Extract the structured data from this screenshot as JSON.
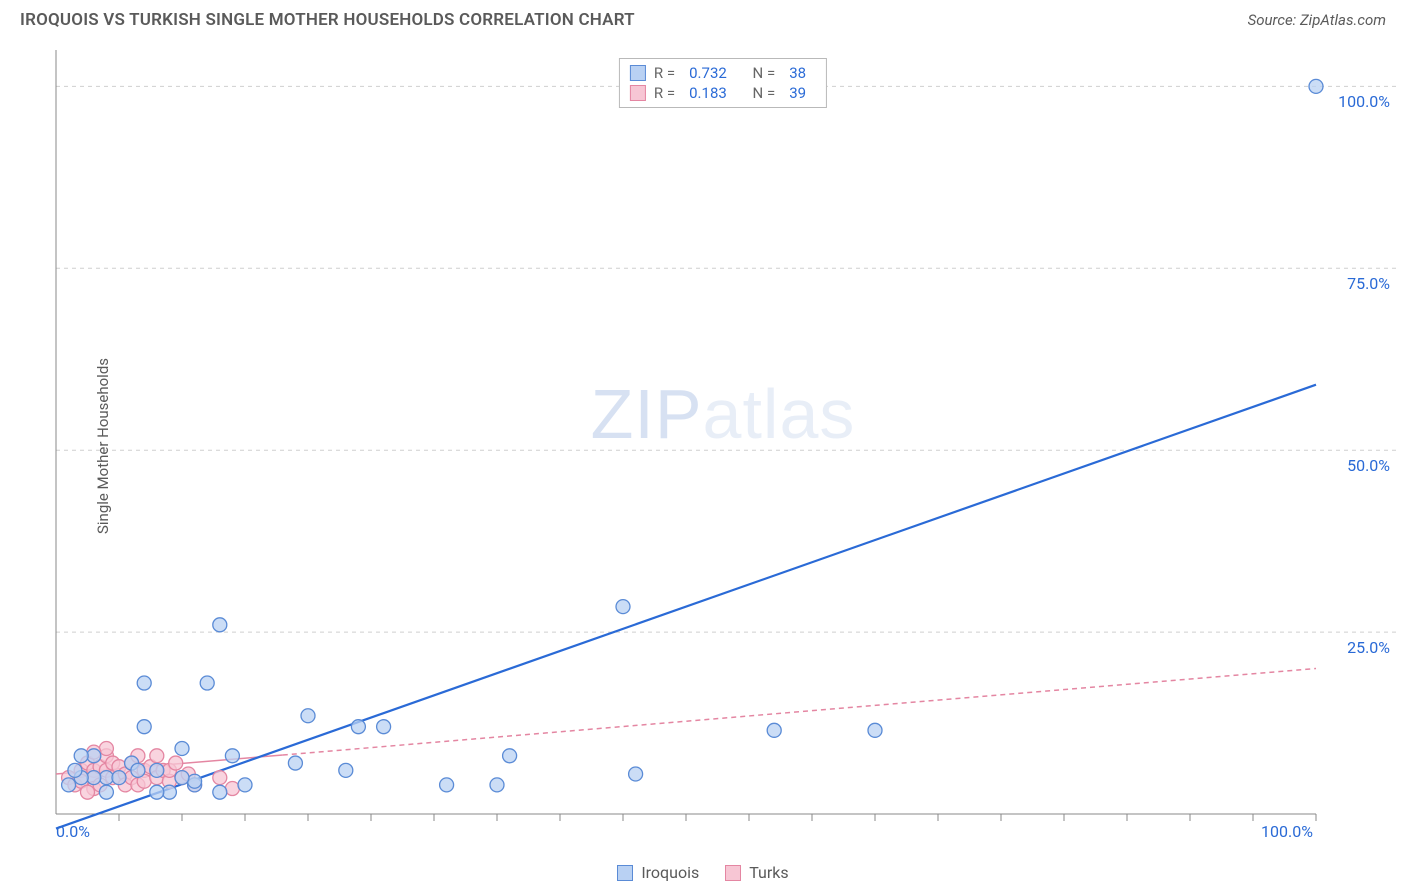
{
  "header": {
    "title": "IROQUOIS VS TURKISH SINGLE MOTHER HOUSEHOLDS CORRELATION CHART",
    "source_prefix": "Source: ",
    "source_name": "ZipAtlas.com"
  },
  "watermark": {
    "strong": "ZIP",
    "light": "atlas"
  },
  "chart": {
    "type": "scatter",
    "ylabel": "Single Mother Households",
    "xlim": [
      0,
      100
    ],
    "ylim": [
      0,
      105
    ],
    "x_axis_labels": [
      {
        "value": 0,
        "text": "0.0%"
      },
      {
        "value": 100,
        "text": "100.0%"
      }
    ],
    "y_axis_labels": [
      {
        "value": 25,
        "text": "25.0%"
      },
      {
        "value": 50,
        "text": "50.0%"
      },
      {
        "value": 75,
        "text": "75.0%"
      },
      {
        "value": 100,
        "text": "100.0%"
      }
    ],
    "x_ticks": [
      5,
      10,
      15,
      20,
      25,
      30,
      35,
      40,
      45,
      50,
      55,
      60,
      65,
      70,
      75,
      80,
      85,
      90,
      95,
      100
    ],
    "grid_y": [
      25,
      50,
      75,
      100
    ],
    "grid_color": "#cfcfcf",
    "background_color": "#ffffff",
    "marker_radius": 7,
    "marker_stroke_width": 1.3,
    "stats": [
      {
        "series": "iroquois",
        "R_label": "R =",
        "R": "0.732",
        "N_label": "N =",
        "N": "38"
      },
      {
        "series": "turks",
        "R_label": "R =",
        "R": "0.183",
        "N_label": "N =",
        "N": "39"
      }
    ],
    "legend": [
      {
        "key": "iroquois",
        "label": "Iroquois"
      },
      {
        "key": "turks",
        "label": "Turks"
      }
    ],
    "series": {
      "iroquois": {
        "fill": "#b9d1f3",
        "stroke": "#5a8bd6",
        "line_color": "#2a6ad6",
        "line_width": 2.2,
        "line_dash": "none",
        "trend": {
          "x1": 0,
          "y1": -2,
          "x2": 100,
          "y2": 59
        },
        "points": [
          [
            100,
            100
          ],
          [
            45,
            28.5
          ],
          [
            13,
            26
          ],
          [
            7,
            18
          ],
          [
            12,
            18
          ],
          [
            24,
            12
          ],
          [
            26,
            12
          ],
          [
            31,
            4
          ],
          [
            35,
            4
          ],
          [
            36,
            8
          ],
          [
            20,
            13.5
          ],
          [
            23,
            6
          ],
          [
            19,
            7
          ],
          [
            15,
            4
          ],
          [
            11,
            4
          ],
          [
            11,
            4.5
          ],
          [
            10,
            5
          ],
          [
            9,
            3
          ],
          [
            8,
            6
          ],
          [
            7,
            12
          ],
          [
            4,
            5
          ],
          [
            3,
            5
          ],
          [
            3,
            8
          ],
          [
            4,
            3
          ],
          [
            2,
            5
          ],
          [
            2,
            8
          ],
          [
            1.5,
            6
          ],
          [
            1,
            4
          ],
          [
            5,
            5
          ],
          [
            6,
            7
          ],
          [
            6.5,
            6
          ],
          [
            57,
            11.5
          ],
          [
            65,
            11.5
          ],
          [
            46,
            5.5
          ],
          [
            10,
            9
          ],
          [
            13,
            3
          ],
          [
            14,
            8
          ],
          [
            8,
            3
          ]
        ]
      },
      "turks": {
        "fill": "#f7c6d4",
        "stroke": "#e486a2",
        "line_color": "#e486a2",
        "line_width": 1.5,
        "line_dash": "5 4",
        "trend_solid_until": 18,
        "trend": {
          "x1": 0,
          "y1": 5.5,
          "x2": 100,
          "y2": 20
        },
        "points": [
          [
            1,
            5
          ],
          [
            1.5,
            4
          ],
          [
            2,
            6
          ],
          [
            2,
            4.5
          ],
          [
            2.5,
            7
          ],
          [
            3,
            6
          ],
          [
            3,
            5
          ],
          [
            3,
            3.5
          ],
          [
            3.5,
            6.5
          ],
          [
            3.5,
            4
          ],
          [
            4,
            6
          ],
          [
            4,
            8
          ],
          [
            4.5,
            5
          ],
          [
            4.5,
            7
          ],
          [
            5,
            5
          ],
          [
            5,
            6.5
          ],
          [
            5.5,
            5.5
          ],
          [
            5.5,
            4
          ],
          [
            6,
            7
          ],
          [
            6,
            5
          ],
          [
            6.5,
            4
          ],
          [
            6.5,
            8
          ],
          [
            7,
            6
          ],
          [
            7,
            4.5
          ],
          [
            7.5,
            6.5
          ],
          [
            8,
            8
          ],
          [
            8,
            5
          ],
          [
            8.5,
            6
          ],
          [
            9,
            4.5
          ],
          [
            9,
            6
          ],
          [
            9.5,
            7
          ],
          [
            10,
            5
          ],
          [
            10.5,
            5.5
          ],
          [
            11,
            4
          ],
          [
            4,
            9
          ],
          [
            2.5,
            3
          ],
          [
            3,
            8.5
          ],
          [
            13,
            5
          ],
          [
            14,
            3.5
          ]
        ]
      }
    }
  }
}
